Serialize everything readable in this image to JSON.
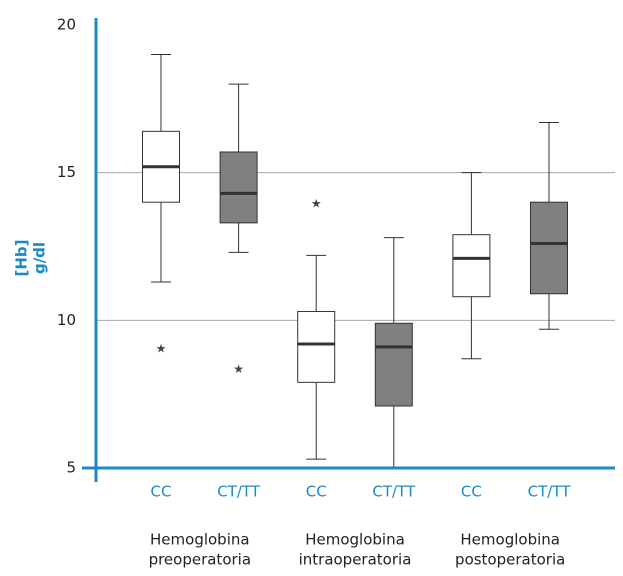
{
  "chart_data": {
    "type": "box",
    "y_label": [
      "[Hb]",
      "g/dl"
    ],
    "groups": [
      [
        "Hemoglobina",
        "preoperatoria"
      ],
      [
        "Hemoglobina",
        "intraoperatoria"
      ],
      [
        "Hemoglobina",
        "postoperatoria"
      ]
    ],
    "series": [
      {
        "name": "CC",
        "color": "#ffffff",
        "min": [
          11.3,
          5.3,
          8.7
        ],
        "q1": [
          14.0,
          7.9,
          10.8
        ],
        "median": [
          15.2,
          9.2,
          12.1
        ],
        "q3": [
          16.4,
          10.3,
          12.9
        ],
        "max": [
          19.0,
          12.2,
          15.0
        ],
        "outliers": [
          [
            9.1
          ],
          [
            14.0
          ],
          []
        ]
      },
      {
        "name": "CT/TT",
        "color": "#808080",
        "min": [
          12.3,
          5.0,
          9.7
        ],
        "q1": [
          13.3,
          7.1,
          10.9
        ],
        "median": [
          14.3,
          9.1,
          12.6
        ],
        "q3": [
          15.7,
          9.9,
          14.0
        ],
        "max": [
          18.0,
          12.8,
          16.7
        ],
        "outliers": [
          [
            8.4
          ],
          [],
          []
        ]
      }
    ],
    "ylim": [
      5,
      20
    ],
    "yticks": [
      5,
      10,
      15,
      20
    ],
    "grid": true,
    "axis_color": "#1a8ac6"
  }
}
